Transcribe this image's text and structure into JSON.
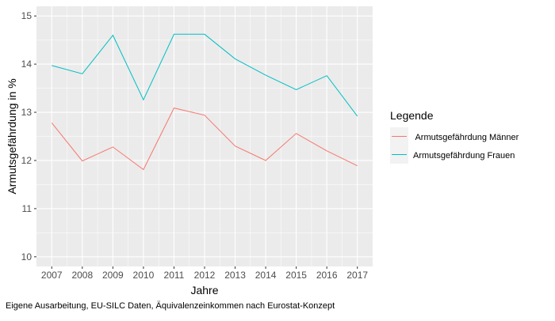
{
  "chart_data": {
    "type": "line",
    "x": [
      2007,
      2008,
      2009,
      2010,
      2011,
      2012,
      2013,
      2014,
      2015,
      2016,
      2017
    ],
    "series": [
      {
        "name": " Armutsgefährdung Männer",
        "color": "#F8766D",
        "values": [
          12.78,
          11.99,
          12.28,
          11.81,
          13.09,
          12.94,
          12.3,
          12.0,
          12.56,
          12.2,
          11.89
        ]
      },
      {
        "name": "Armutsgefährdung Frauen",
        "color": "#00BFC4",
        "values": [
          13.97,
          13.8,
          14.6,
          13.26,
          14.62,
          14.62,
          14.11,
          13.77,
          13.47,
          13.76,
          12.92
        ]
      }
    ],
    "xlabel": "Jahre",
    "ylabel": "Armutsgefährdung in %",
    "ylim": [
      9.8,
      15.2
    ],
    "yticks": [
      10,
      11,
      12,
      13,
      14,
      15
    ],
    "xticks": [
      2007,
      2008,
      2009,
      2010,
      2011,
      2012,
      2013,
      2014,
      2015,
      2016,
      2017
    ],
    "grid": true,
    "legend": {
      "title": "Legende",
      "position": "right"
    },
    "caption": "Eigene Ausarbeitung, EU-SILC Daten, Äquivalenzeinkommen nach Eurostat-Konzept",
    "panel_background": "#EBEBEB"
  }
}
